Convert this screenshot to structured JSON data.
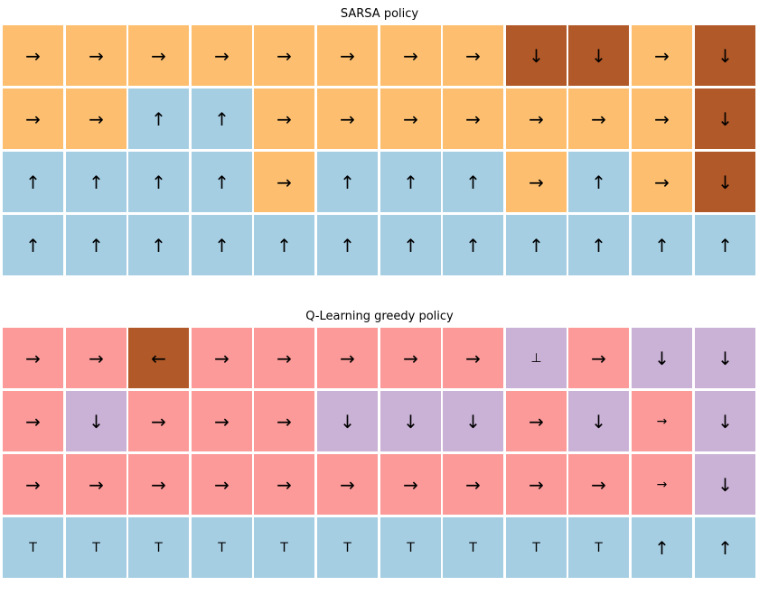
{
  "chart_data": [
    {
      "type": "heatmap",
      "title": "SARSA policy",
      "rows": 4,
      "cols": 12,
      "palette": {
        "right": "#fdbf6f",
        "up": "#a6cee3",
        "down": "#b15928"
      },
      "cells": [
        [
          {
            "glyph": "→",
            "action": "right"
          },
          {
            "glyph": "→",
            "action": "right"
          },
          {
            "glyph": "→",
            "action": "right"
          },
          {
            "glyph": "→",
            "action": "right"
          },
          {
            "glyph": "→",
            "action": "right"
          },
          {
            "glyph": "→",
            "action": "right"
          },
          {
            "glyph": "→",
            "action": "right"
          },
          {
            "glyph": "→",
            "action": "right"
          },
          {
            "glyph": "↓",
            "action": "down"
          },
          {
            "glyph": "↓",
            "action": "down"
          },
          {
            "glyph": "→",
            "action": "right"
          },
          {
            "glyph": "↓",
            "action": "down"
          }
        ],
        [
          {
            "glyph": "→",
            "action": "right"
          },
          {
            "glyph": "→",
            "action": "right"
          },
          {
            "glyph": "↑",
            "action": "up"
          },
          {
            "glyph": "↑",
            "action": "up"
          },
          {
            "glyph": "→",
            "action": "right"
          },
          {
            "glyph": "→",
            "action": "right"
          },
          {
            "glyph": "→",
            "action": "right"
          },
          {
            "glyph": "→",
            "action": "right"
          },
          {
            "glyph": "→",
            "action": "right"
          },
          {
            "glyph": "→",
            "action": "right"
          },
          {
            "glyph": "→",
            "action": "right"
          },
          {
            "glyph": "↓",
            "action": "down"
          }
        ],
        [
          {
            "glyph": "↑",
            "action": "up"
          },
          {
            "glyph": "↑",
            "action": "up"
          },
          {
            "glyph": "↑",
            "action": "up"
          },
          {
            "glyph": "↑",
            "action": "up"
          },
          {
            "glyph": "→",
            "action": "right"
          },
          {
            "glyph": "↑",
            "action": "up"
          },
          {
            "glyph": "↑",
            "action": "up"
          },
          {
            "glyph": "↑",
            "action": "up"
          },
          {
            "glyph": "→",
            "action": "right"
          },
          {
            "glyph": "↑",
            "action": "up"
          },
          {
            "glyph": "→",
            "action": "right"
          },
          {
            "glyph": "↓",
            "action": "down"
          }
        ],
        [
          {
            "glyph": "↑",
            "action": "up"
          },
          {
            "glyph": "↑",
            "action": "up"
          },
          {
            "glyph": "↑",
            "action": "up"
          },
          {
            "glyph": "↑",
            "action": "up"
          },
          {
            "glyph": "↑",
            "action": "up"
          },
          {
            "glyph": "↑",
            "action": "up"
          },
          {
            "glyph": "↑",
            "action": "up"
          },
          {
            "glyph": "↑",
            "action": "up"
          },
          {
            "glyph": "↑",
            "action": "up"
          },
          {
            "glyph": "↑",
            "action": "up"
          },
          {
            "glyph": "↑",
            "action": "up"
          },
          {
            "glyph": "↑",
            "action": "up"
          }
        ]
      ]
    },
    {
      "type": "heatmap",
      "title": "Q-Learning greedy policy",
      "rows": 4,
      "cols": 12,
      "palette": {
        "right": "#fb9a99",
        "down": "#cab2d6",
        "left": "#b15928",
        "up": "#a6cee3"
      },
      "cells": [
        [
          {
            "glyph": "→",
            "action": "right"
          },
          {
            "glyph": "→",
            "action": "right"
          },
          {
            "glyph": "←",
            "action": "left"
          },
          {
            "glyph": "→",
            "action": "right"
          },
          {
            "glyph": "→",
            "action": "right"
          },
          {
            "glyph": "→",
            "action": "right"
          },
          {
            "glyph": "→",
            "action": "right"
          },
          {
            "glyph": "→",
            "action": "right"
          },
          {
            "glyph": "⊥",
            "action": "down",
            "small": true
          },
          {
            "glyph": "→",
            "action": "right"
          },
          {
            "glyph": "↓",
            "action": "down"
          },
          {
            "glyph": "↓",
            "action": "down"
          }
        ],
        [
          {
            "glyph": "→",
            "action": "right"
          },
          {
            "glyph": "↓",
            "action": "down"
          },
          {
            "glyph": "→",
            "action": "right"
          },
          {
            "glyph": "→",
            "action": "right"
          },
          {
            "glyph": "→",
            "action": "right"
          },
          {
            "glyph": "↓",
            "action": "down"
          },
          {
            "glyph": "↓",
            "action": "down"
          },
          {
            "glyph": "↓",
            "action": "down"
          },
          {
            "glyph": "→",
            "action": "right"
          },
          {
            "glyph": "↓",
            "action": "down"
          },
          {
            "glyph": "→",
            "action": "right",
            "small": true
          },
          {
            "glyph": "↓",
            "action": "down"
          }
        ],
        [
          {
            "glyph": "→",
            "action": "right"
          },
          {
            "glyph": "→",
            "action": "right"
          },
          {
            "glyph": "→",
            "action": "right"
          },
          {
            "glyph": "→",
            "action": "right"
          },
          {
            "glyph": "→",
            "action": "right"
          },
          {
            "glyph": "→",
            "action": "right"
          },
          {
            "glyph": "→",
            "action": "right"
          },
          {
            "glyph": "→",
            "action": "right"
          },
          {
            "glyph": "→",
            "action": "right"
          },
          {
            "glyph": "→",
            "action": "right"
          },
          {
            "glyph": "→",
            "action": "right",
            "small": true
          },
          {
            "glyph": "↓",
            "action": "down"
          }
        ],
        [
          {
            "glyph": "T",
            "action": "up",
            "small": true
          },
          {
            "glyph": "T",
            "action": "up",
            "small": true
          },
          {
            "glyph": "T",
            "action": "up",
            "small": true
          },
          {
            "glyph": "T",
            "action": "up",
            "small": true
          },
          {
            "glyph": "T",
            "action": "up",
            "small": true
          },
          {
            "glyph": "T",
            "action": "up",
            "small": true
          },
          {
            "glyph": "T",
            "action": "up",
            "small": true
          },
          {
            "glyph": "T",
            "action": "up",
            "small": true
          },
          {
            "glyph": "T",
            "action": "up",
            "small": true
          },
          {
            "glyph": "T",
            "action": "up",
            "small": true
          },
          {
            "glyph": "↑",
            "action": "up"
          },
          {
            "glyph": "↑",
            "action": "up"
          }
        ]
      ]
    }
  ]
}
